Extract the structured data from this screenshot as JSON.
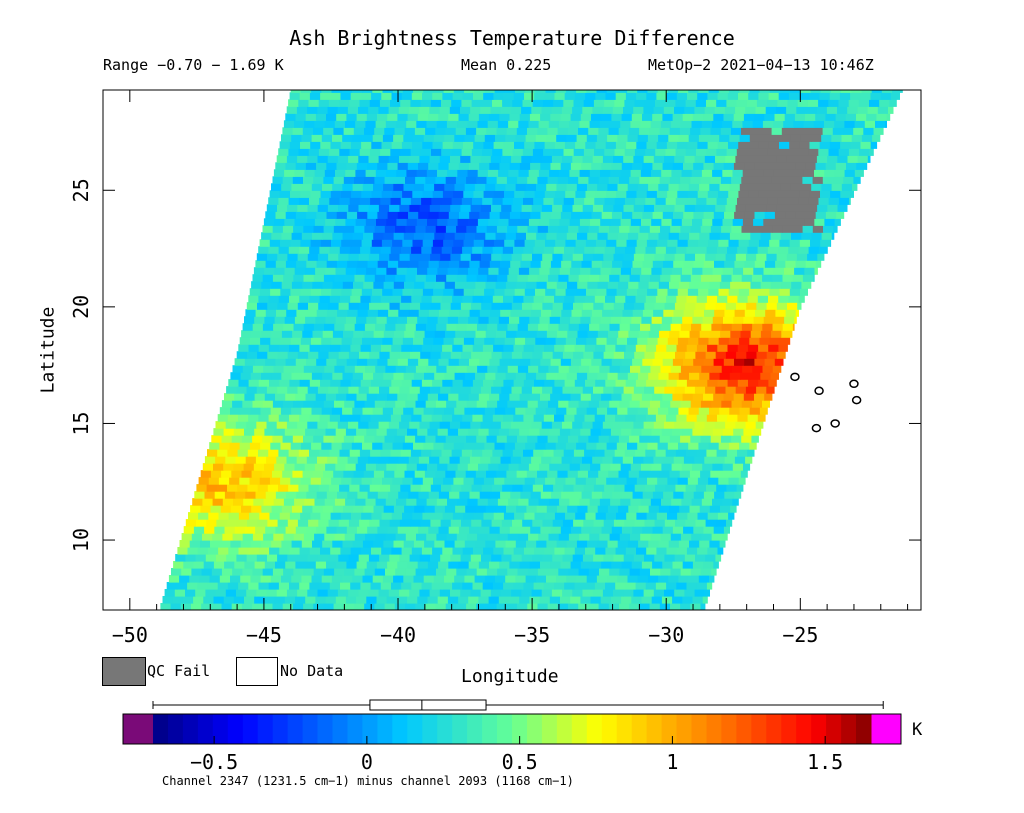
{
  "header": {
    "title": "Ash Brightness Temperature Difference",
    "range": "Range −0.70 − 1.69 K",
    "mean": "Mean 0.225",
    "satellite": "MetOp−2 2021−04−13 10:46Z"
  },
  "legend": {
    "qc_fail_label": "QC Fail",
    "no_data_label": "No Data",
    "qc_fail_color": "#777777",
    "no_data_color": "#ffffff"
  },
  "colorbar": {
    "unit": "K",
    "caption": "Channel 2347 (1231.5 cm−1) minus channel 2093 (1168 cm−1)",
    "vmin": -0.7,
    "vmax": 1.65,
    "extend_low_color": "#7a0a78",
    "extend_high_color": "#ff00ff",
    "ticks": [
      {
        "value": -0.5,
        "label": "−0.5"
      },
      {
        "value": 0,
        "label": "0"
      },
      {
        "value": 0.5,
        "label": "0.5"
      },
      {
        "value": 1,
        "label": "1"
      },
      {
        "value": 1.5,
        "label": "1.5"
      }
    ],
    "box": {
      "whisker_low": -0.7,
      "q1": 0.01,
      "median": 0.18,
      "q3": 0.39,
      "whisker_high": 1.69
    }
  },
  "chart_data": {
    "type": "heatmap",
    "title": "Ash Brightness Temperature Difference",
    "xlabel": "Longitude",
    "ylabel": "Latitude",
    "xlim": [
      -51,
      -20.5
    ],
    "ylim": [
      7,
      29.3
    ],
    "xticks": [
      {
        "value": -50,
        "label": "−50"
      },
      {
        "value": -45,
        "label": "−45"
      },
      {
        "value": -40,
        "label": "−40"
      },
      {
        "value": -35,
        "label": "−35"
      },
      {
        "value": -30,
        "label": "−30"
      },
      {
        "value": -25,
        "label": "−25"
      }
    ],
    "yticks": [
      {
        "value": 10,
        "label": "10"
      },
      {
        "value": 15,
        "label": "15"
      },
      {
        "value": 20,
        "label": "20"
      },
      {
        "value": 25,
        "label": "25"
      }
    ],
    "swath": {
      "west_edge": [
        [
          -48.9,
          7
        ],
        [
          -46.0,
          18
        ],
        [
          -44.0,
          29.3
        ]
      ],
      "east_edge": [
        [
          -28.6,
          7
        ],
        [
          -25.0,
          20
        ],
        [
          -21.2,
          29.3
        ]
      ]
    },
    "regions": [
      {
        "name": "warm band south-west",
        "lon": -46.5,
        "lat": 12.5,
        "value": 0.9
      },
      {
        "name": "warm band east",
        "lon": -27.0,
        "lat": 17.5,
        "value": 1.4
      },
      {
        "name": "cool core north",
        "lon": -39.0,
        "lat": 23.5,
        "value": -0.2
      },
      {
        "name": "background",
        "lon": -36.0,
        "lat": 12.0,
        "value": 0.25
      }
    ],
    "qc_fail_region": {
      "lon": [
        -27.5,
        -24.5
      ],
      "lat": [
        23.2,
        27.5
      ]
    },
    "islands": [
      {
        "lon": -25.2,
        "lat": 17.0
      },
      {
        "lon": -24.3,
        "lat": 16.4
      },
      {
        "lon": -23.0,
        "lat": 16.7
      },
      {
        "lon": -22.9,
        "lat": 16.0
      },
      {
        "lon": -23.7,
        "lat": 15.0
      },
      {
        "lon": -24.4,
        "lat": 14.8
      }
    ]
  }
}
